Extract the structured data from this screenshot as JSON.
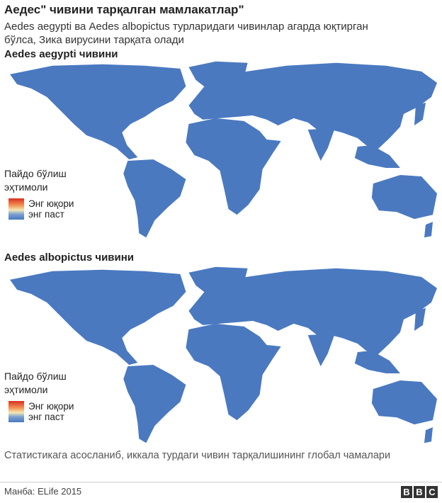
{
  "header": {
    "title": "Аедес\" чивини тарқалган мамлакатлар\"",
    "subtitle": "Aedes aegypti ва Aedes albopictus турларидаги чивинлар агарда юқтирган бўлса, Зика вирусини тарқата олади"
  },
  "maps": [
    {
      "title": "Aedes aegypti чивини",
      "legend": {
        "title": "Пайдо бўлиш эҳтимоли",
        "high": "Энг юқори",
        "low": "энг паст"
      }
    },
    {
      "title": "Aedes albopictus чивини",
      "legend": {
        "title": "Пайдо бўлиш эҳтимоли",
        "high": "Энг юқори",
        "low": "энг паст"
      }
    }
  ],
  "footer": {
    "note": "Статистикага асосланиб, иккала турдаги чивин тарқалишининг глобал чамалари",
    "source": "Манба: ELife 2015",
    "logo": [
      "B",
      "B",
      "C"
    ]
  }
}
